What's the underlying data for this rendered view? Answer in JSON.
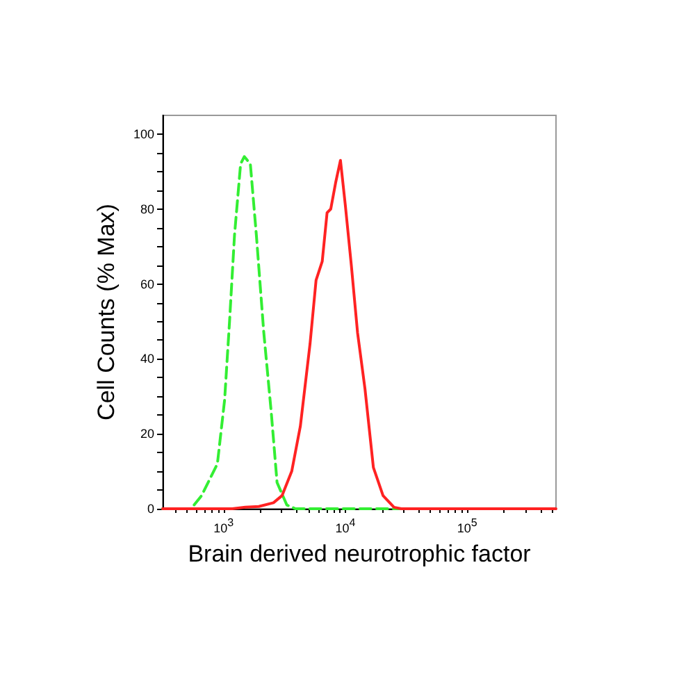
{
  "chart_data": {
    "type": "line",
    "xlabel": "Brain derived neurotrophic factor",
    "ylabel": "Cell Counts (% Max)",
    "log": "x",
    "grid": false,
    "marker": "none",
    "xlim": [
      316,
      537000
    ],
    "ylim": [
      0,
      105
    ],
    "xticks": [
      {
        "value": 400,
        "label": null
      },
      {
        "value": 500,
        "label": null
      },
      {
        "value": 600,
        "label": null
      },
      {
        "value": 700,
        "label": null
      },
      {
        "value": 800,
        "label": null
      },
      {
        "value": 900,
        "label": null
      },
      {
        "value": 1000,
        "label": "10$^{3}$"
      },
      {
        "value": 2000,
        "label": null
      },
      {
        "value": 3000,
        "label": null
      },
      {
        "value": 4000,
        "label": null
      },
      {
        "value": 5000,
        "label": null
      },
      {
        "value": 6000,
        "label": null
      },
      {
        "value": 7000,
        "label": null
      },
      {
        "value": 8000,
        "label": null
      },
      {
        "value": 9000,
        "label": null
      },
      {
        "value": 10000,
        "label": "10$^{4}$"
      },
      {
        "value": 20000,
        "label": null
      },
      {
        "value": 30000,
        "label": null
      },
      {
        "value": 40000,
        "label": null
      },
      {
        "value": 50000,
        "label": null
      },
      {
        "value": 60000,
        "label": null
      },
      {
        "value": 70000,
        "label": null
      },
      {
        "value": 80000,
        "label": null
      },
      {
        "value": 90000,
        "label": null
      },
      {
        "value": 100000,
        "label": "10$^{5}$"
      },
      {
        "value": 200000,
        "label": null
      },
      {
        "value": 300000,
        "label": null
      },
      {
        "value": 400000,
        "label": null
      },
      {
        "value": 500000,
        "label": null
      }
    ],
    "yticks": [
      0,
      {
        "value": 5,
        "label": null
      },
      {
        "value": 10,
        "label": null
      },
      {
        "value": 15,
        "label": null
      },
      20,
      {
        "value": 25,
        "label": null
      },
      {
        "value": 30,
        "label": null
      },
      {
        "value": 35,
        "label": null
      },
      40,
      {
        "value": 45,
        "label": null
      },
      {
        "value": 50,
        "label": null
      },
      {
        "value": 55,
        "label": null
      },
      60,
      {
        "value": 65,
        "label": null
      },
      {
        "value": 70,
        "label": null
      },
      {
        "value": 75,
        "label": null
      },
      80,
      {
        "value": 85,
        "label": null
      },
      {
        "value": 90,
        "label": null
      },
      {
        "value": 95,
        "label": null
      },
      100
    ],
    "series": [
      {
        "color": "#33ee33",
        "line_style": "dashed",
        "x": [
          316,
          540,
          660,
          890,
          1020,
          1120,
          1230,
          1380,
          1480,
          1660,
          1860,
          2140,
          2460,
          2750,
          3310,
          3890,
          537000
        ],
        "values": [
          0,
          0,
          3.5,
          12,
          29,
          50,
          73,
          92,
          94,
          92,
          73,
          47,
          26,
          7,
          1,
          0,
          0
        ]
      },
      {
        "color": "#ff2222",
        "line_style": "solid",
        "x": [
          316,
          1180,
          1510,
          1950,
          2570,
          3020,
          3630,
          4270,
          5130,
          5750,
          6460,
          7080,
          7590,
          8320,
          9120,
          10000,
          11200,
          12600,
          14500,
          17000,
          20400,
          25100,
          28800,
          537000
        ],
        "values": [
          0,
          0,
          0.4,
          0.6,
          1.6,
          3.5,
          10,
          22,
          44,
          61,
          66,
          79,
          80,
          87,
          93,
          81,
          65,
          47,
          32,
          11,
          3.5,
          0.4,
          0,
          0
        ]
      }
    ]
  }
}
